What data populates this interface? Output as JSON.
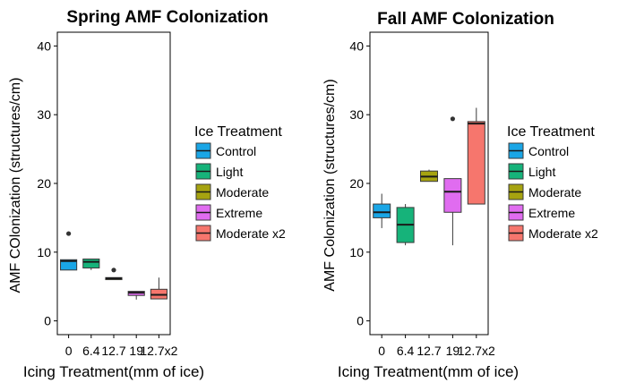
{
  "chart_data": [
    {
      "type": "box",
      "title": "Spring AMF Colonization",
      "xlabel": "Icing Treatment(mm of ice)",
      "ylabel": "AMF COlonization (structures/cm)",
      "ylim": [
        -2,
        42
      ],
      "yticks": [
        0,
        10,
        20,
        30,
        40
      ],
      "categories": [
        "0",
        "6.4",
        "12.7",
        "19",
        "12.7x2"
      ],
      "legend": {
        "title": "Ice Treatment",
        "position": "right",
        "entries": [
          "Control",
          "Light",
          "Moderate",
          "Extreme",
          "Moderate x2"
        ]
      },
      "series": [
        {
          "name": "Control",
          "color": "#1AA6E6",
          "q1": 7.4,
          "median": 8.7,
          "q3": 8.9,
          "whisker_low": 7.4,
          "whisker_high": 8.9,
          "outliers": [
            12.7
          ]
        },
        {
          "name": "Light",
          "color": "#16B37A",
          "q1": 7.7,
          "median": 8.6,
          "q3": 9.0,
          "whisker_low": 7.4,
          "whisker_high": 9.0,
          "outliers": []
        },
        {
          "name": "Moderate",
          "color": "#A6A310",
          "q1": 6.0,
          "median": 6.2,
          "q3": 6.3,
          "whisker_low": 6.0,
          "whisker_high": 6.3,
          "outliers": [
            7.4
          ]
        },
        {
          "name": "Extreme",
          "color": "#E06CF0",
          "q1": 3.7,
          "median": 4.1,
          "q3": 4.3,
          "whisker_low": 3.1,
          "whisker_high": 4.3,
          "outliers": []
        },
        {
          "name": "Moderate x2",
          "color": "#F6766D",
          "q1": 3.2,
          "median": 3.8,
          "q3": 4.6,
          "whisker_low": 3.2,
          "whisker_high": 6.3,
          "outliers": []
        }
      ]
    },
    {
      "type": "box",
      "title": "Fall AMF Colonization",
      "xlabel": "Icing Treatment(mm of ice)",
      "ylabel": "AMF Colonization (structures/cm)",
      "ylim": [
        -2,
        42
      ],
      "yticks": [
        0,
        10,
        20,
        30,
        40
      ],
      "categories": [
        "0",
        "6.4",
        "12.7",
        "19",
        "12.7x2"
      ],
      "legend": {
        "title": "Ice Treatment",
        "position": "right",
        "entries": [
          "Control",
          "Light",
          "Moderate",
          "Extreme",
          "Moderate x2"
        ]
      },
      "series": [
        {
          "name": "Control",
          "color": "#1AA6E6",
          "q1": 15.0,
          "median": 15.8,
          "q3": 17.0,
          "whisker_low": 13.5,
          "whisker_high": 18.5,
          "outliers": []
        },
        {
          "name": "Light",
          "color": "#16B37A",
          "q1": 11.4,
          "median": 14.0,
          "q3": 16.5,
          "whisker_low": 11.0,
          "whisker_high": 17.0,
          "outliers": []
        },
        {
          "name": "Moderate",
          "color": "#A6A310",
          "q1": 20.3,
          "median": 21.0,
          "q3": 21.8,
          "whisker_low": 20.3,
          "whisker_high": 22.0,
          "outliers": []
        },
        {
          "name": "Extreme",
          "color": "#E06CF0",
          "q1": 15.8,
          "median": 18.8,
          "q3": 20.7,
          "whisker_low": 11.0,
          "whisker_high": 20.7,
          "outliers": [
            29.4
          ]
        },
        {
          "name": "Moderate x2",
          "color": "#F6766D",
          "q1": 17.0,
          "median": 28.7,
          "q3": 29.0,
          "whisker_low": 17.0,
          "whisker_high": 31.0,
          "outliers": []
        }
      ]
    }
  ]
}
